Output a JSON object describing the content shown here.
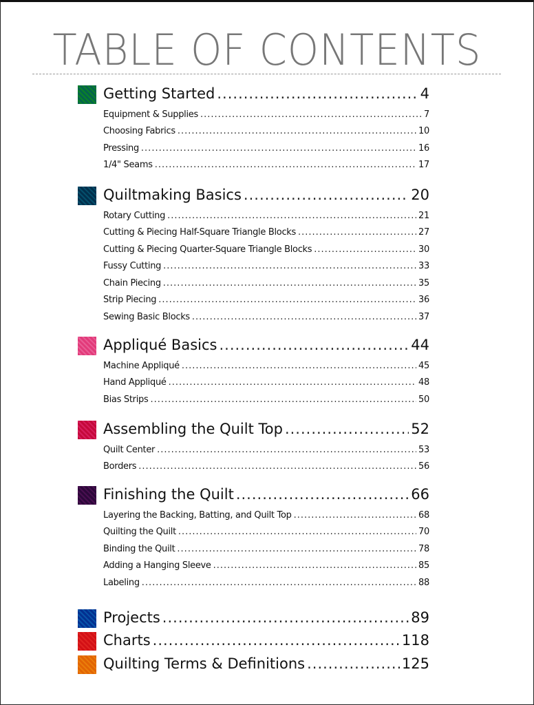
{
  "title": "TABLE OF CONTENTS",
  "sections": [
    {
      "title": "Getting Started",
      "page": "4",
      "color1": "#1aa08a",
      "color2": "#6fcf4a",
      "items": [
        {
          "title": "Equipment & Supplies",
          "page": "7"
        },
        {
          "title": "Choosing Fabrics",
          "page": "10"
        },
        {
          "title": "Pressing",
          "page": "16"
        },
        {
          "title": "1/4\" Seams",
          "page": "17"
        }
      ]
    },
    {
      "title": "Quiltmaking Basics",
      "page": "20",
      "color1": "#0f6e8c",
      "color2": "#3cb7c4",
      "items": [
        {
          "title": "Rotary Cutting",
          "page": "21"
        },
        {
          "title": "Cutting & Piecing Half-Square Triangle Blocks",
          "page": "27"
        },
        {
          "title": "Cutting & Piecing Quarter-Square Triangle Blocks",
          "page": "30"
        },
        {
          "title": "Fussy Cutting",
          "page": "33"
        },
        {
          "title": "Chain Piecing",
          "page": "35"
        },
        {
          "title": "Strip Piecing",
          "page": "36"
        },
        {
          "title": "Sewing Basic Blocks",
          "page": "37"
        }
      ]
    },
    {
      "title": "Appliqué Basics",
      "page": "44",
      "color1": "#f07ab0",
      "color2": "#f7c2d8",
      "items": [
        {
          "title": "Machine Appliqué",
          "page": "45"
        },
        {
          "title": "Hand Appliqué",
          "page": "48"
        },
        {
          "title": "Bias Strips",
          "page": "50"
        }
      ]
    },
    {
      "title": "Assembling the Quilt Top",
      "page": "52",
      "color1": "#e0307a",
      "color2": "#f59ac0",
      "items": [
        {
          "title": "Quilt Center",
          "page": "53"
        },
        {
          "title": "Borders",
          "page": "56"
        }
      ]
    },
    {
      "title": "Finishing the Quilt",
      "page": "66",
      "color1": "#6a2a7a",
      "color2": "#b05aa8",
      "items": [
        {
          "title": "Layering the Backing, Batting, and Quilt Top",
          "page": "68"
        },
        {
          "title": "Quilting the Quilt",
          "page": "70"
        },
        {
          "title": "Binding the Quilt",
          "page": "78"
        },
        {
          "title": "Adding a Hanging Sleeve",
          "page": "85"
        },
        {
          "title": "Labeling",
          "page": "88"
        }
      ]
    },
    {
      "title": "Projects",
      "page": "89",
      "color1": "#1a6fc0",
      "color2": "#4ac0e0",
      "items": []
    },
    {
      "title": "Charts",
      "page": "118",
      "color1": "#e8404a",
      "color2": "#f58a70",
      "items": []
    },
    {
      "title": "Quilting Terms & Definitions",
      "page": "125",
      "color1": "#f0a020",
      "color2": "#f8c850",
      "items": []
    }
  ]
}
